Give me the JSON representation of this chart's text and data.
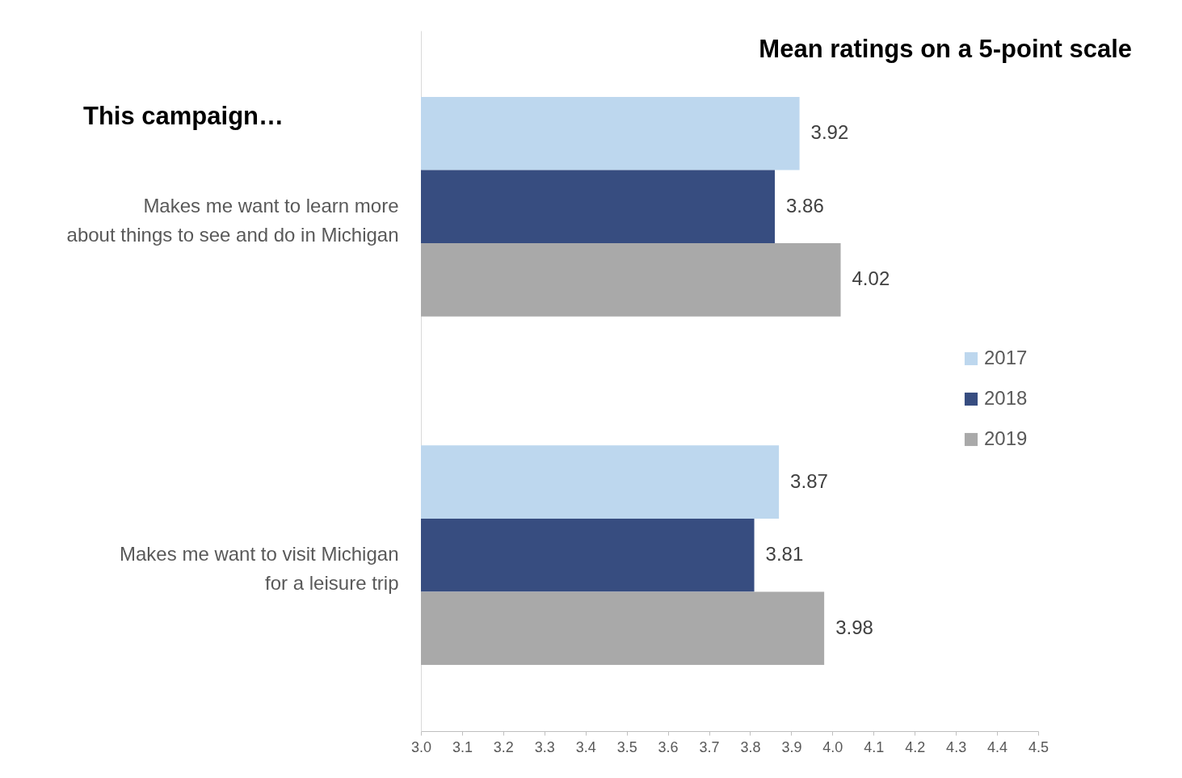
{
  "chart_data": {
    "type": "bar",
    "orientation": "horizontal",
    "title": "Mean ratings on a 5-point scale",
    "subtitle": "This campaign…",
    "categories": [
      "Makes me want to learn more\nabout things to see and do in Michigan",
      "Makes me want to visit Michigan\nfor a leisure trip"
    ],
    "series": [
      {
        "name": "2017",
        "color": "#bdd7ee",
        "values": [
          3.92,
          3.87
        ]
      },
      {
        "name": "2018",
        "color": "#374d80",
        "values": [
          3.86,
          3.81
        ]
      },
      {
        "name": "2019",
        "color": "#a9a9a9",
        "values": [
          4.02,
          3.98
        ]
      }
    ],
    "xlim": [
      3.0,
      4.5
    ],
    "xticks": [
      {
        "value": 3.0,
        "label": "3.0"
      },
      3.1,
      3.2,
      3.3,
      3.4,
      3.5,
      3.6,
      3.7,
      3.8,
      3.9,
      {
        "value": 4.0,
        "label": "4.0"
      },
      4.1,
      4.2,
      4.3,
      4.4,
      4.5
    ],
    "data_labels": true,
    "legend": "right",
    "grid": false
  }
}
